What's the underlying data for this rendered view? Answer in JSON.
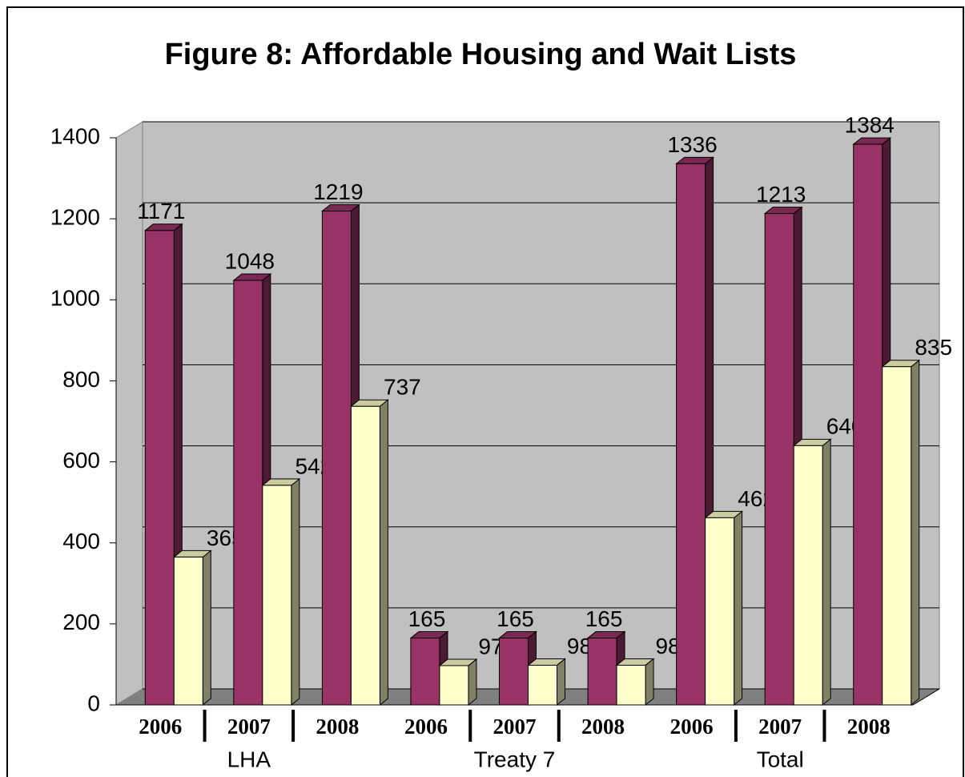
{
  "chart_data": {
    "type": "bar3d",
    "title": "Figure 8: Affordable Housing and Wait Lists",
    "categories": [
      "2006",
      "2007",
      "2008",
      "2006",
      "2007",
      "2008",
      "2006",
      "2007",
      "2008"
    ],
    "groups": [
      "LHA",
      "Treaty 7",
      "Total"
    ],
    "series": [
      {
        "color": "#993366",
        "values": [
          1171,
          1048,
          1219,
          165,
          165,
          165,
          1336,
          1213,
          1384
        ]
      },
      {
        "color": "#ffffcc",
        "values": [
          365,
          542,
          737,
          97,
          98,
          98,
          462,
          640,
          835
        ]
      }
    ],
    "ylim": [
      0,
      1400
    ],
    "yticks": [
      0,
      200,
      400,
      600,
      800,
      1000,
      1200,
      1400
    ],
    "grid": true
  }
}
